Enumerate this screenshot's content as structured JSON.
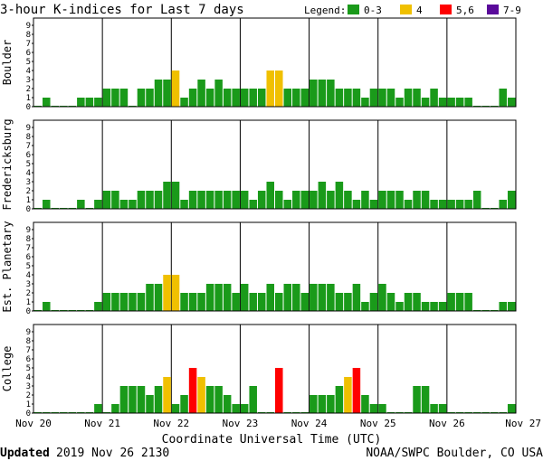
{
  "header": {
    "title": "3-hour K-indices for Last 7 days",
    "legend_label": "Legend:",
    "legend": [
      {
        "label": "0-3",
        "color": "#1a9a1a"
      },
      {
        "label": "4",
        "color": "#f0c000"
      },
      {
        "label": "5,6",
        "color": "#ff0000"
      },
      {
        "label": "7-9",
        "color": "#5a0a9a"
      }
    ]
  },
  "footer": {
    "updated_label": "Updated",
    "updated_value": "2019 Nov 26 2130",
    "source": "NOAA/SWPC Boulder, CO USA"
  },
  "chart_data": {
    "type": "bar",
    "xlabel": "Coordinate Universal Time (UTC)",
    "x_ticks": [
      "Nov 20",
      "Nov 21",
      "Nov 22",
      "Nov 23",
      "Nov 24",
      "Nov 25",
      "Nov 26",
      "Nov 27"
    ],
    "y_ticks": [
      "0",
      "1",
      "2",
      "3",
      "4",
      "5",
      "6",
      "7",
      "8",
      "9"
    ],
    "ylim": [
      0,
      9
    ],
    "bars_per_panel": 56,
    "color_scale": {
      "0-3": "#1a9a1a",
      "4": "#f0c000",
      "5,6": "#ff0000",
      "7-9": "#5a0a9a"
    },
    "panels": [
      {
        "ylabel": "Boulder",
        "values": [
          0,
          1,
          0,
          0,
          0,
          1,
          1,
          1,
          2,
          2,
          2,
          0,
          2,
          2,
          3,
          3,
          4,
          1,
          2,
          3,
          2,
          3,
          2,
          2,
          2,
          2,
          2,
          4,
          4,
          2,
          2,
          2,
          3,
          3,
          3,
          2,
          2,
          2,
          1,
          2,
          2,
          2,
          1,
          2,
          2,
          1,
          2,
          1,
          1,
          1,
          1,
          0,
          0,
          0,
          2,
          1
        ]
      },
      {
        "ylabel": "Fredericksburg",
        "values": [
          0,
          1,
          0,
          0,
          0,
          1,
          0,
          1,
          2,
          2,
          1,
          1,
          2,
          2,
          2,
          3,
          3,
          1,
          2,
          2,
          2,
          2,
          2,
          2,
          2,
          1,
          2,
          3,
          2,
          1,
          2,
          2,
          2,
          3,
          2,
          3,
          2,
          1,
          2,
          1,
          2,
          2,
          2,
          1,
          2,
          2,
          1,
          1,
          1,
          1,
          1,
          2,
          0,
          0,
          1,
          2
        ]
      },
      {
        "ylabel": "Est. Planetary",
        "values": [
          0,
          1,
          0,
          0,
          0,
          0,
          0,
          1,
          2,
          2,
          2,
          2,
          2,
          3,
          3,
          4,
          4,
          2,
          2,
          2,
          3,
          3,
          3,
          2,
          3,
          2,
          2,
          3,
          2,
          3,
          3,
          2,
          3,
          3,
          3,
          2,
          2,
          3,
          1,
          2,
          3,
          2,
          1,
          2,
          2,
          1,
          1,
          1,
          2,
          2,
          2,
          0,
          0,
          0,
          1,
          1
        ]
      },
      {
        "ylabel": "College",
        "values": [
          0,
          0,
          0,
          0,
          0,
          0,
          0,
          1,
          0,
          1,
          3,
          3,
          3,
          2,
          3,
          4,
          1,
          2,
          5,
          4,
          3,
          3,
          2,
          1,
          1,
          3,
          0,
          0,
          5,
          0,
          0,
          0,
          2,
          2,
          2,
          3,
          4,
          5,
          2,
          1,
          1,
          0,
          0,
          0,
          3,
          3,
          1,
          1,
          0,
          0,
          0,
          0,
          0,
          0,
          0,
          1
        ]
      }
    ]
  }
}
